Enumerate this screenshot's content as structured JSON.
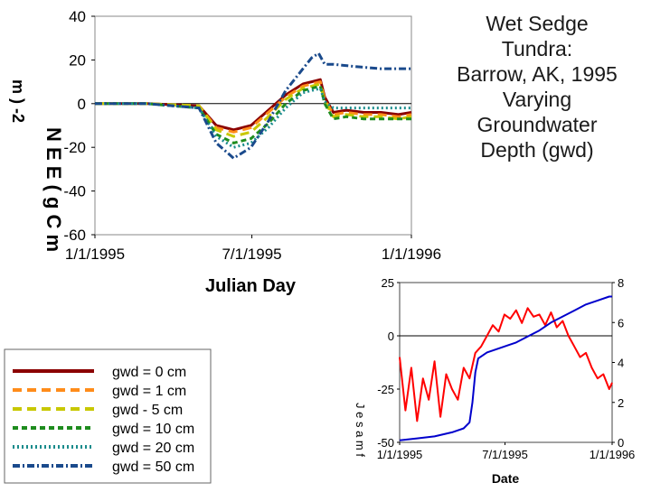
{
  "title_lines": [
    "Wet Sedge",
    "Tundra:",
    "Barrow, AK, 1995",
    "Varying",
    "Groundwater",
    "Depth (gwd)"
  ],
  "chart_data": [
    {
      "type": "line",
      "title": "",
      "xlabel": "Julian Day",
      "ylabel": "m ) -2",
      "ylabel_side": "N E E ( g C m",
      "x_ticks": [
        "1/1/1995",
        "7/1/1995",
        "1/1/1996"
      ],
      "y_ticks": [
        "40",
        "20",
        "0",
        "-20",
        "-40",
        "-60"
      ],
      "xlim": [
        0,
        365
      ],
      "ylim": [
        -60,
        40
      ],
      "grid": false,
      "legend": "bottom-left",
      "series": [
        {
          "name": "gwd = 0 cm",
          "color": "#8b0000",
          "dash": "",
          "x": [
            0,
            60,
            120,
            140,
            160,
            180,
            200,
            220,
            240,
            260,
            265,
            275,
            290,
            310,
            330,
            350,
            365
          ],
          "y": [
            0,
            0,
            -1,
            -10,
            -12,
            -10,
            -3,
            4,
            9,
            11,
            3,
            -4,
            -3,
            -4,
            -4,
            -5,
            -4
          ]
        },
        {
          "name": "gwd = 1 cm",
          "color": "#ff8c1a",
          "dash": "10,6",
          "x": [
            0,
            60,
            120,
            140,
            160,
            180,
            200,
            220,
            240,
            260,
            265,
            275,
            290,
            310,
            330,
            350,
            365
          ],
          "y": [
            0,
            0,
            -1,
            -11,
            -13,
            -11,
            -4,
            3,
            8,
            10,
            2,
            -5,
            -4,
            -5,
            -5,
            -6,
            -5
          ]
        },
        {
          "name": "gwd - 5 cm",
          "color": "#c8c800",
          "dash": "10,6",
          "x": [
            0,
            60,
            120,
            140,
            160,
            180,
            200,
            220,
            240,
            260,
            265,
            275,
            290,
            310,
            330,
            350,
            365
          ],
          "y": [
            0,
            0,
            -1,
            -12,
            -15,
            -13,
            -6,
            2,
            7,
            9,
            1,
            -6,
            -5,
            -6,
            -6,
            -7,
            -6
          ]
        },
        {
          "name": "gwd = 10 cm",
          "color": "#1e8c1e",
          "dash": "6,4",
          "x": [
            0,
            60,
            120,
            140,
            160,
            180,
            200,
            220,
            240,
            260,
            265,
            275,
            290,
            310,
            330,
            350,
            365
          ],
          "y": [
            0,
            0,
            -2,
            -14,
            -18,
            -16,
            -9,
            0,
            6,
            8,
            0,
            -7,
            -6,
            -7,
            -7,
            -7,
            -7
          ]
        },
        {
          "name": "gwd = 20 cm",
          "color": "#1a8c8c",
          "dash": "2,3",
          "x": [
            0,
            60,
            120,
            140,
            160,
            180,
            200,
            220,
            240,
            260,
            265,
            275,
            290,
            310,
            330,
            350,
            365
          ],
          "y": [
            0,
            0,
            -2,
            -15,
            -20,
            -18,
            -11,
            -2,
            5,
            7,
            1,
            -2,
            -2,
            -2,
            -2,
            -2,
            -2
          ]
        },
        {
          "name": "gwd = 50  cm",
          "color": "#1a4a8c",
          "dash": "8,3,2,3",
          "x": [
            0,
            60,
            120,
            140,
            160,
            180,
            200,
            220,
            240,
            250,
            258,
            265,
            275,
            300,
            330,
            350,
            365
          ],
          "y": [
            0,
            0,
            -2,
            -18,
            -25,
            -20,
            -8,
            6,
            16,
            21,
            23,
            18,
            18,
            17,
            16,
            16,
            16
          ]
        }
      ]
    },
    {
      "type": "line",
      "xlabel": "Date",
      "ylabel": "J e s a m f",
      "x_ticks": [
        "1/1/1995",
        "7/1/1995",
        "1/1/1996"
      ],
      "y_ticks_left": [
        "25",
        "0",
        "-25",
        "-50"
      ],
      "y_ticks_right": [
        "8",
        "6",
        "4",
        "2",
        "0"
      ],
      "xlim": [
        0,
        365
      ],
      "ylim_left": [
        -50,
        25
      ],
      "ylim_right": [
        0,
        8
      ],
      "grid": false,
      "series": [
        {
          "color": "#ff0000",
          "axis": "left",
          "x": [
            0,
            10,
            20,
            30,
            40,
            50,
            60,
            70,
            80,
            90,
            100,
            110,
            120,
            130,
            140,
            150,
            160,
            170,
            180,
            190,
            200,
            210,
            220,
            230,
            240,
            250,
            260,
            270,
            280,
            290,
            300,
            310,
            320,
            330,
            340,
            350,
            360,
            365
          ],
          "y": [
            -10,
            -35,
            -15,
            -40,
            -20,
            -30,
            -12,
            -38,
            -18,
            -25,
            -30,
            -15,
            -20,
            -8,
            -5,
            0,
            5,
            2,
            10,
            8,
            12,
            6,
            13,
            9,
            10,
            5,
            11,
            4,
            7,
            0,
            -5,
            -10,
            -8,
            -15,
            -20,
            -18,
            -25,
            -22
          ]
        },
        {
          "color": "#0000cc",
          "axis": "right",
          "x": [
            0,
            30,
            60,
            90,
            110,
            120,
            125,
            130,
            135,
            150,
            180,
            200,
            220,
            240,
            260,
            280,
            300,
            320,
            340,
            360,
            365
          ],
          "y": [
            0.1,
            0.2,
            0.3,
            0.5,
            0.7,
            1.0,
            2.0,
            3.5,
            4.2,
            4.5,
            4.8,
            5.0,
            5.3,
            5.6,
            6.0,
            6.3,
            6.6,
            6.9,
            7.1,
            7.3,
            7.3
          ]
        }
      ]
    }
  ]
}
